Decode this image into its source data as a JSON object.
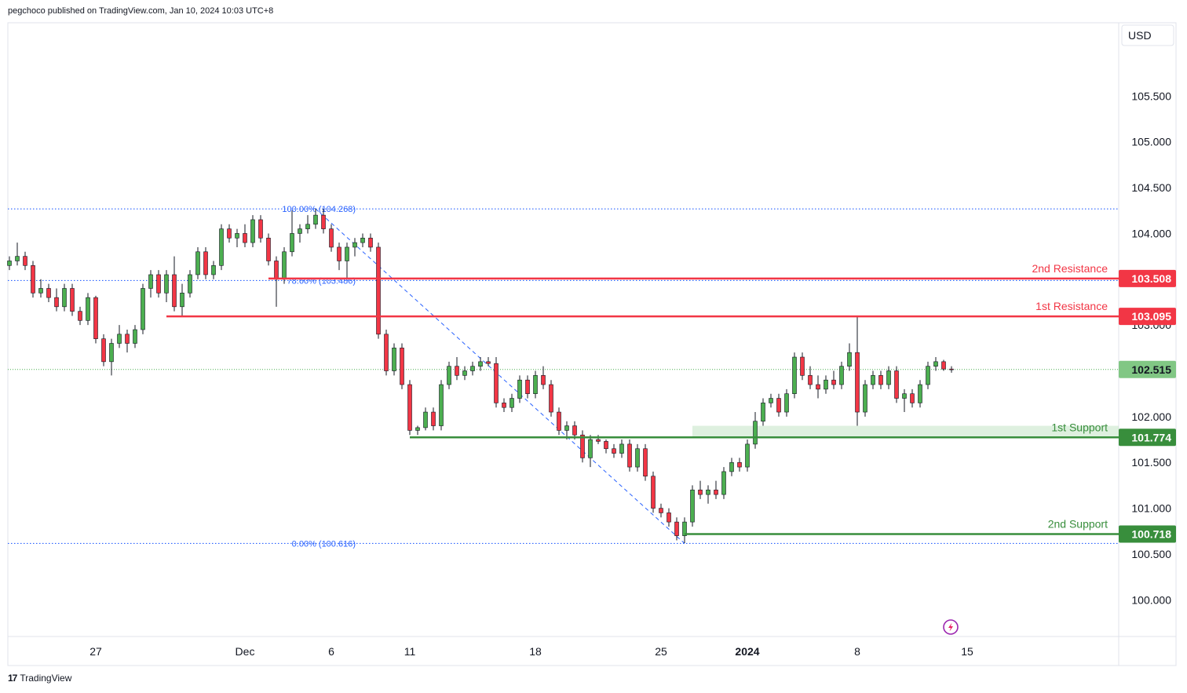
{
  "header": {
    "published": "pegchoco published on TradingView.com, Jan 10, 2024 10:03 UTC+8"
  },
  "footer": {
    "brand": "TradingView",
    "logo_mark": "17"
  },
  "colors": {
    "up": "#26a69a",
    "down": "#ef5350",
    "candle_up": "#4caf50",
    "candle_down": "#f23645",
    "resistance": "#f23645",
    "support": "#388e3c",
    "fib": "#2962ff",
    "current": "#81c784"
  },
  "chart_data": {
    "type": "candlestick",
    "currency": "USD",
    "ylim": [
      99.6,
      106.3
    ],
    "y_ticks": [
      "100.000",
      "100.500",
      "101.000",
      "101.500",
      "102.000",
      "103.000",
      "104.000",
      "104.500",
      "105.000",
      "105.500"
    ],
    "x_ticks": [
      {
        "label": "27",
        "bold": false
      },
      {
        "label": "Dec",
        "bold": false
      },
      {
        "label": "6",
        "bold": false
      },
      {
        "label": "11",
        "bold": false
      },
      {
        "label": "18",
        "bold": false
      },
      {
        "label": "25",
        "bold": false
      },
      {
        "label": "2024",
        "bold": true
      },
      {
        "label": "8",
        "bold": false
      },
      {
        "label": "15",
        "bold": false
      }
    ],
    "levels": [
      {
        "name": "2nd Resistance",
        "value": 103.508,
        "label": "103.508",
        "kind": "resistance"
      },
      {
        "name": "1st Resistance",
        "value": 103.095,
        "label": "103.095",
        "kind": "resistance"
      },
      {
        "name": "1st Support",
        "value": 101.774,
        "label": "101.774",
        "kind": "support"
      },
      {
        "name": "2nd Support",
        "value": 100.718,
        "label": "100.718",
        "kind": "support"
      }
    ],
    "fib": [
      {
        "label": "100.00% (104.268)",
        "value": 104.268
      },
      {
        "label": "78.60% (103.486)",
        "value": 103.486
      },
      {
        "label": "0.00% (100.616)",
        "value": 100.616
      }
    ],
    "current_price": {
      "value": 102.515,
      "label": "102.515"
    },
    "support_zone": [
      101.774,
      101.9
    ],
    "candles": [
      [
        103.65,
        103.75,
        103.6,
        103.7
      ],
      [
        103.7,
        103.9,
        103.65,
        103.75
      ],
      [
        103.75,
        103.8,
        103.6,
        103.65
      ],
      [
        103.65,
        103.7,
        103.3,
        103.35
      ],
      [
        103.35,
        103.5,
        103.3,
        103.4
      ],
      [
        103.4,
        103.45,
        103.25,
        103.3
      ],
      [
        103.3,
        103.4,
        103.15,
        103.2
      ],
      [
        103.2,
        103.45,
        103.15,
        103.4
      ],
      [
        103.4,
        103.45,
        103.1,
        103.15
      ],
      [
        103.15,
        103.2,
        103.0,
        103.05
      ],
      [
        103.05,
        103.35,
        103.0,
        103.3
      ],
      [
        103.3,
        103.32,
        102.8,
        102.85
      ],
      [
        102.85,
        102.9,
        102.55,
        102.6
      ],
      [
        102.6,
        102.85,
        102.45,
        102.8
      ],
      [
        102.8,
        103.0,
        102.75,
        102.9
      ],
      [
        102.9,
        102.95,
        102.7,
        102.8
      ],
      [
        102.8,
        103.0,
        102.75,
        102.95
      ],
      [
        102.95,
        103.45,
        102.9,
        103.4
      ],
      [
        103.4,
        103.6,
        103.3,
        103.55
      ],
      [
        103.55,
        103.6,
        103.3,
        103.35
      ],
      [
        103.35,
        103.6,
        103.25,
        103.55
      ],
      [
        103.55,
        103.75,
        103.15,
        103.2
      ],
      [
        103.2,
        103.45,
        103.1,
        103.35
      ],
      [
        103.35,
        103.6,
        103.3,
        103.55
      ],
      [
        103.55,
        103.85,
        103.5,
        103.8
      ],
      [
        103.8,
        103.85,
        103.5,
        103.55
      ],
      [
        103.55,
        103.7,
        103.5,
        103.65
      ],
      [
        103.65,
        104.1,
        103.6,
        104.05
      ],
      [
        104.05,
        104.1,
        103.9,
        103.95
      ],
      [
        103.95,
        104.05,
        103.85,
        104.0
      ],
      [
        104.0,
        104.1,
        103.85,
        103.9
      ],
      [
        103.9,
        104.2,
        103.85,
        104.15
      ],
      [
        104.15,
        104.2,
        103.9,
        103.95
      ],
      [
        103.95,
        104.0,
        103.65,
        103.7
      ],
      [
        103.7,
        103.75,
        103.2,
        103.5
      ],
      [
        103.5,
        103.85,
        103.45,
        103.8
      ],
      [
        103.8,
        104.25,
        103.75,
        104.0
      ],
      [
        104.0,
        104.1,
        103.9,
        104.05
      ],
      [
        104.05,
        104.2,
        104.0,
        104.1
      ],
      [
        104.1,
        104.27,
        104.05,
        104.2
      ],
      [
        104.2,
        104.27,
        104.0,
        104.05
      ],
      [
        104.05,
        104.1,
        103.8,
        103.85
      ],
      [
        103.85,
        103.9,
        103.6,
        103.7
      ],
      [
        103.7,
        103.9,
        103.5,
        103.85
      ],
      [
        103.85,
        103.95,
        103.75,
        103.9
      ],
      [
        103.9,
        104.0,
        103.85,
        103.95
      ],
      [
        103.95,
        104.0,
        103.8,
        103.85
      ],
      [
        103.85,
        103.9,
        102.85,
        102.9
      ],
      [
        102.9,
        102.95,
        102.45,
        102.5
      ],
      [
        102.5,
        102.8,
        102.45,
        102.75
      ],
      [
        102.75,
        102.8,
        102.3,
        102.35
      ],
      [
        102.35,
        102.4,
        101.8,
        101.85
      ],
      [
        101.85,
        101.9,
        101.8,
        101.88
      ],
      [
        101.88,
        102.1,
        101.85,
        102.05
      ],
      [
        102.05,
        102.1,
        101.85,
        101.9
      ],
      [
        101.9,
        102.4,
        101.85,
        102.35
      ],
      [
        102.35,
        102.6,
        102.3,
        102.55
      ],
      [
        102.55,
        102.65,
        102.4,
        102.45
      ],
      [
        102.45,
        102.55,
        102.4,
        102.5
      ],
      [
        102.5,
        102.6,
        102.45,
        102.55
      ],
      [
        102.55,
        102.65,
        102.5,
        102.6
      ],
      [
        102.6,
        102.65,
        102.55,
        102.58
      ],
      [
        102.58,
        102.65,
        102.1,
        102.15
      ],
      [
        102.15,
        102.2,
        102.05,
        102.1
      ],
      [
        102.1,
        102.25,
        102.05,
        102.2
      ],
      [
        102.2,
        102.45,
        102.15,
        102.4
      ],
      [
        102.4,
        102.45,
        102.2,
        102.25
      ],
      [
        102.25,
        102.5,
        102.2,
        102.45
      ],
      [
        102.45,
        102.55,
        102.3,
        102.35
      ],
      [
        102.35,
        102.4,
        102.0,
        102.05
      ],
      [
        102.05,
        102.1,
        101.8,
        101.85
      ],
      [
        101.85,
        101.95,
        101.75,
        101.9
      ],
      [
        101.9,
        101.95,
        101.75,
        101.8
      ],
      [
        101.8,
        101.85,
        101.5,
        101.55
      ],
      [
        101.55,
        101.8,
        101.45,
        101.75
      ],
      [
        101.75,
        101.8,
        101.7,
        101.73
      ],
      [
        101.73,
        101.75,
        101.6,
        101.65
      ],
      [
        101.65,
        101.7,
        101.55,
        101.6
      ],
      [
        101.6,
        101.75,
        101.55,
        101.7
      ],
      [
        101.7,
        101.75,
        101.4,
        101.45
      ],
      [
        101.45,
        101.7,
        101.4,
        101.65
      ],
      [
        101.65,
        101.7,
        101.3,
        101.35
      ],
      [
        101.35,
        101.4,
        100.95,
        101.0
      ],
      [
        101.0,
        101.05,
        100.9,
        100.95
      ],
      [
        100.95,
        101.0,
        100.8,
        100.85
      ],
      [
        100.85,
        100.9,
        100.65,
        100.7
      ],
      [
        100.7,
        100.9,
        100.62,
        100.85
      ],
      [
        100.85,
        101.25,
        100.8,
        101.2
      ],
      [
        101.2,
        101.3,
        101.1,
        101.15
      ],
      [
        101.15,
        101.25,
        101.05,
        101.2
      ],
      [
        101.2,
        101.3,
        101.1,
        101.15
      ],
      [
        101.15,
        101.45,
        101.1,
        101.4
      ],
      [
        101.4,
        101.55,
        101.35,
        101.5
      ],
      [
        101.5,
        101.55,
        101.4,
        101.45
      ],
      [
        101.45,
        101.75,
        101.4,
        101.7
      ],
      [
        101.7,
        102.05,
        101.65,
        101.95
      ],
      [
        101.95,
        102.2,
        101.9,
        102.15
      ],
      [
        102.15,
        102.25,
        102.1,
        102.2
      ],
      [
        102.2,
        102.25,
        102.0,
        102.05
      ],
      [
        102.05,
        102.3,
        102.0,
        102.25
      ],
      [
        102.25,
        102.7,
        102.2,
        102.65
      ],
      [
        102.65,
        102.7,
        102.4,
        102.45
      ],
      [
        102.45,
        102.55,
        102.3,
        102.35
      ],
      [
        102.35,
        102.45,
        102.2,
        102.3
      ],
      [
        102.3,
        102.45,
        102.25,
        102.4
      ],
      [
        102.4,
        102.5,
        102.3,
        102.35
      ],
      [
        102.35,
        102.6,
        102.3,
        102.55
      ],
      [
        102.55,
        102.8,
        102.5,
        102.7
      ],
      [
        102.7,
        103.1,
        101.9,
        102.05
      ],
      [
        102.05,
        102.4,
        102.0,
        102.35
      ],
      [
        102.35,
        102.5,
        102.3,
        102.45
      ],
      [
        102.45,
        102.5,
        102.3,
        102.35
      ],
      [
        102.35,
        102.55,
        102.3,
        102.5
      ],
      [
        102.5,
        102.55,
        102.15,
        102.2
      ],
      [
        102.2,
        102.3,
        102.05,
        102.25
      ],
      [
        102.25,
        102.3,
        102.1,
        102.15
      ],
      [
        102.15,
        102.4,
        102.1,
        102.35
      ],
      [
        102.35,
        102.6,
        102.3,
        102.55
      ],
      [
        102.55,
        102.65,
        102.5,
        102.6
      ],
      [
        102.6,
        102.62,
        102.5,
        102.52
      ],
      [
        102.52,
        102.55,
        102.48,
        102.515
      ]
    ]
  }
}
